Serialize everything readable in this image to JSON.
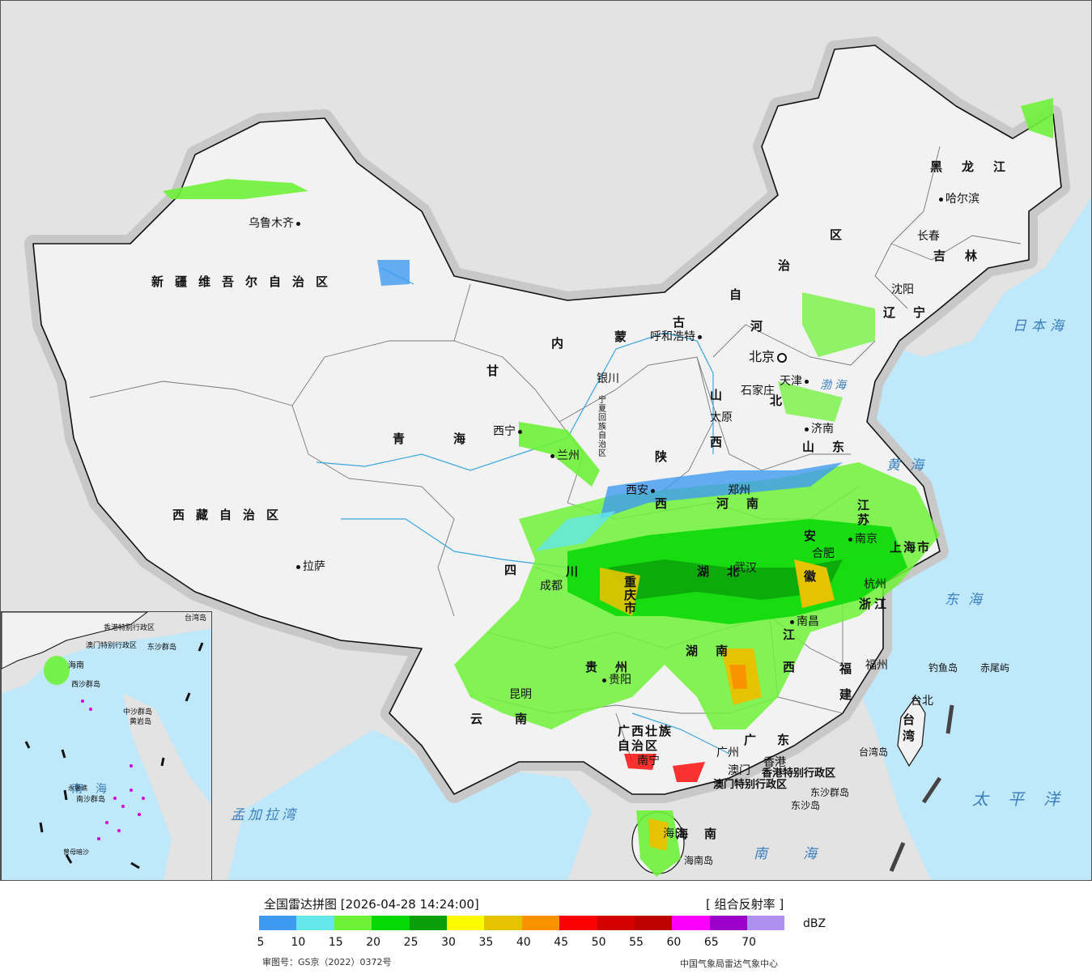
{
  "map": {
    "provinces": [
      {
        "id": "xinjiang",
        "name": "新疆维吾尔自治区"
      },
      {
        "id": "xizang",
        "name": "西藏自治区"
      },
      {
        "id": "qinghai",
        "name": "青海"
      },
      {
        "id": "gansu",
        "name": "甘"
      },
      {
        "id": "neimenggu1",
        "name": "内"
      },
      {
        "id": "neimenggu2",
        "name": "蒙"
      },
      {
        "id": "neimenggu3",
        "name": "古"
      },
      {
        "id": "neimenggu4",
        "name": "自"
      },
      {
        "id": "neimenggu5",
        "name": "治"
      },
      {
        "id": "neimenggu6",
        "name": "区"
      },
      {
        "id": "heilongjiang",
        "name": "黑龙江"
      },
      {
        "id": "jilin",
        "name": "吉林"
      },
      {
        "id": "liaoning",
        "name": "辽宁"
      },
      {
        "id": "hebei1",
        "name": "河"
      },
      {
        "id": "hebei2",
        "name": "北"
      },
      {
        "id": "shanxi1",
        "name": "山"
      },
      {
        "id": "shanxi2",
        "name": "西"
      },
      {
        "id": "shandong",
        "name": "山东"
      },
      {
        "id": "henan",
        "name": "河南"
      },
      {
        "id": "shaanxi1",
        "name": "陕"
      },
      {
        "id": "shaanxi2",
        "name": "西"
      },
      {
        "id": "sichuan",
        "name": "四"
      },
      {
        "id": "sichuan2",
        "name": "川"
      },
      {
        "id": "hubei",
        "name": "湖北"
      },
      {
        "id": "hunan",
        "name": "湖南"
      },
      {
        "id": "jiangxi1",
        "name": "江"
      },
      {
        "id": "jiangxi2",
        "name": "西"
      },
      {
        "id": "zhejiang",
        "name": "浙江"
      },
      {
        "id": "fujian1",
        "name": "福"
      },
      {
        "id": "fujian2",
        "name": "建"
      },
      {
        "id": "guizhou",
        "name": "贵州"
      },
      {
        "id": "yunnan",
        "name": "云南"
      },
      {
        "id": "guangxi",
        "name": "广西壮族自治区"
      },
      {
        "id": "guangdong",
        "name": "广东"
      },
      {
        "id": "hainan",
        "name": "海南"
      },
      {
        "id": "taiwan",
        "name": "台湾"
      },
      {
        "id": "shanghai",
        "name": "上海市"
      },
      {
        "id": "jiangsu",
        "name": "江苏"
      },
      {
        "id": "anhui",
        "name": "安徽"
      },
      {
        "id": "chongqing",
        "name": "重庆市"
      },
      {
        "id": "hk",
        "name": "香港特别行政区"
      },
      {
        "id": "macau",
        "name": "澳门特别行政区"
      },
      {
        "id": "ningxia",
        "name": "宁夏回族自治区"
      }
    ],
    "cities": [
      {
        "id": "urumqi",
        "name": "乌鲁木齐"
      },
      {
        "id": "lhasa",
        "name": "拉萨"
      },
      {
        "id": "xining",
        "name": "西宁"
      },
      {
        "id": "lanzhou",
        "name": "兰州"
      },
      {
        "id": "yinchuan",
        "name": "银川"
      },
      {
        "id": "hohhot",
        "name": "呼和浩特"
      },
      {
        "id": "xian",
        "name": "西安"
      },
      {
        "id": "taiyuan",
        "name": "太原"
      },
      {
        "id": "shijiazhuang",
        "name": "石家庄"
      },
      {
        "id": "beijing",
        "name": "北京"
      },
      {
        "id": "tianjin",
        "name": "天津"
      },
      {
        "id": "jinan",
        "name": "济南"
      },
      {
        "id": "zhengzhou",
        "name": "郑州"
      },
      {
        "id": "harbin",
        "name": "哈尔滨"
      },
      {
        "id": "changchun",
        "name": "长春"
      },
      {
        "id": "shenyang",
        "name": "沈阳"
      },
      {
        "id": "chengdu",
        "name": "成都"
      },
      {
        "id": "wuhan",
        "name": "武汉"
      },
      {
        "id": "nanjing",
        "name": "南京"
      },
      {
        "id": "hefei",
        "name": "合肥"
      },
      {
        "id": "hangzhou",
        "name": "杭州"
      },
      {
        "id": "nanchang",
        "name": "南昌"
      },
      {
        "id": "fuzhou",
        "name": "福州"
      },
      {
        "id": "taipei",
        "name": "台北"
      },
      {
        "id": "guiyang",
        "name": "贵阳"
      },
      {
        "id": "kunming",
        "name": "昆明"
      },
      {
        "id": "nanning",
        "name": "南宁"
      },
      {
        "id": "guangzhou",
        "name": "广州"
      },
      {
        "id": "haikou",
        "name": "海口"
      },
      {
        "id": "hongkong",
        "name": "香港"
      },
      {
        "id": "macao",
        "name": "澳门"
      }
    ],
    "seas": [
      {
        "id": "bohai",
        "name": "渤海"
      },
      {
        "id": "huanghai",
        "name": "黄海"
      },
      {
        "id": "donghai",
        "name": "东海"
      },
      {
        "id": "nanhai",
        "name": "南海"
      },
      {
        "id": "taipingyang",
        "name": "太平洋"
      },
      {
        "id": "ribenhai",
        "name": "日本海"
      },
      {
        "id": "mengjialawan",
        "name": "孟加拉湾"
      }
    ],
    "islands": [
      {
        "id": "diaoyu",
        "name": "钓鱼岛"
      },
      {
        "id": "chiwei",
        "name": "赤尾屿"
      },
      {
        "id": "taiwan_island",
        "name": "台湾岛"
      },
      {
        "id": "dongsha1",
        "name": "东沙群岛"
      },
      {
        "id": "dongsha2",
        "name": "东沙岛"
      },
      {
        "id": "hainan_island",
        "name": "海南岛"
      }
    ],
    "inset": {
      "labels": [
        "南海",
        "东沙群岛",
        "中沙群岛",
        "黄岩岛",
        "永暑礁",
        "南沙群岛",
        "曾母暗沙",
        "西沙群岛",
        "海南",
        "台湾岛",
        "香港特别行政区",
        "澳门特别行政区"
      ]
    }
  },
  "legend": {
    "title": "全国雷达拼图 [2026-04-28 14:24:00]",
    "type": "[ 组合反射率 ]",
    "unit": "dBZ",
    "colors": [
      "#3e9af0",
      "#64e6eb",
      "#6ef238",
      "#05d905",
      "#0a9f0a",
      "#fbfb00",
      "#e6c300",
      "#fb9200",
      "#fb0000",
      "#d20000",
      "#bd0000",
      "#fb00fb",
      "#9a00c8",
      "#ad90f0"
    ],
    "ticks": [
      "5",
      "10",
      "15",
      "20",
      "25",
      "30",
      "35",
      "40",
      "45",
      "50",
      "55",
      "60",
      "65",
      "70"
    ],
    "approval": "审图号：GS京（2022）0372号",
    "source": "中国气象局雷达气象中心"
  }
}
